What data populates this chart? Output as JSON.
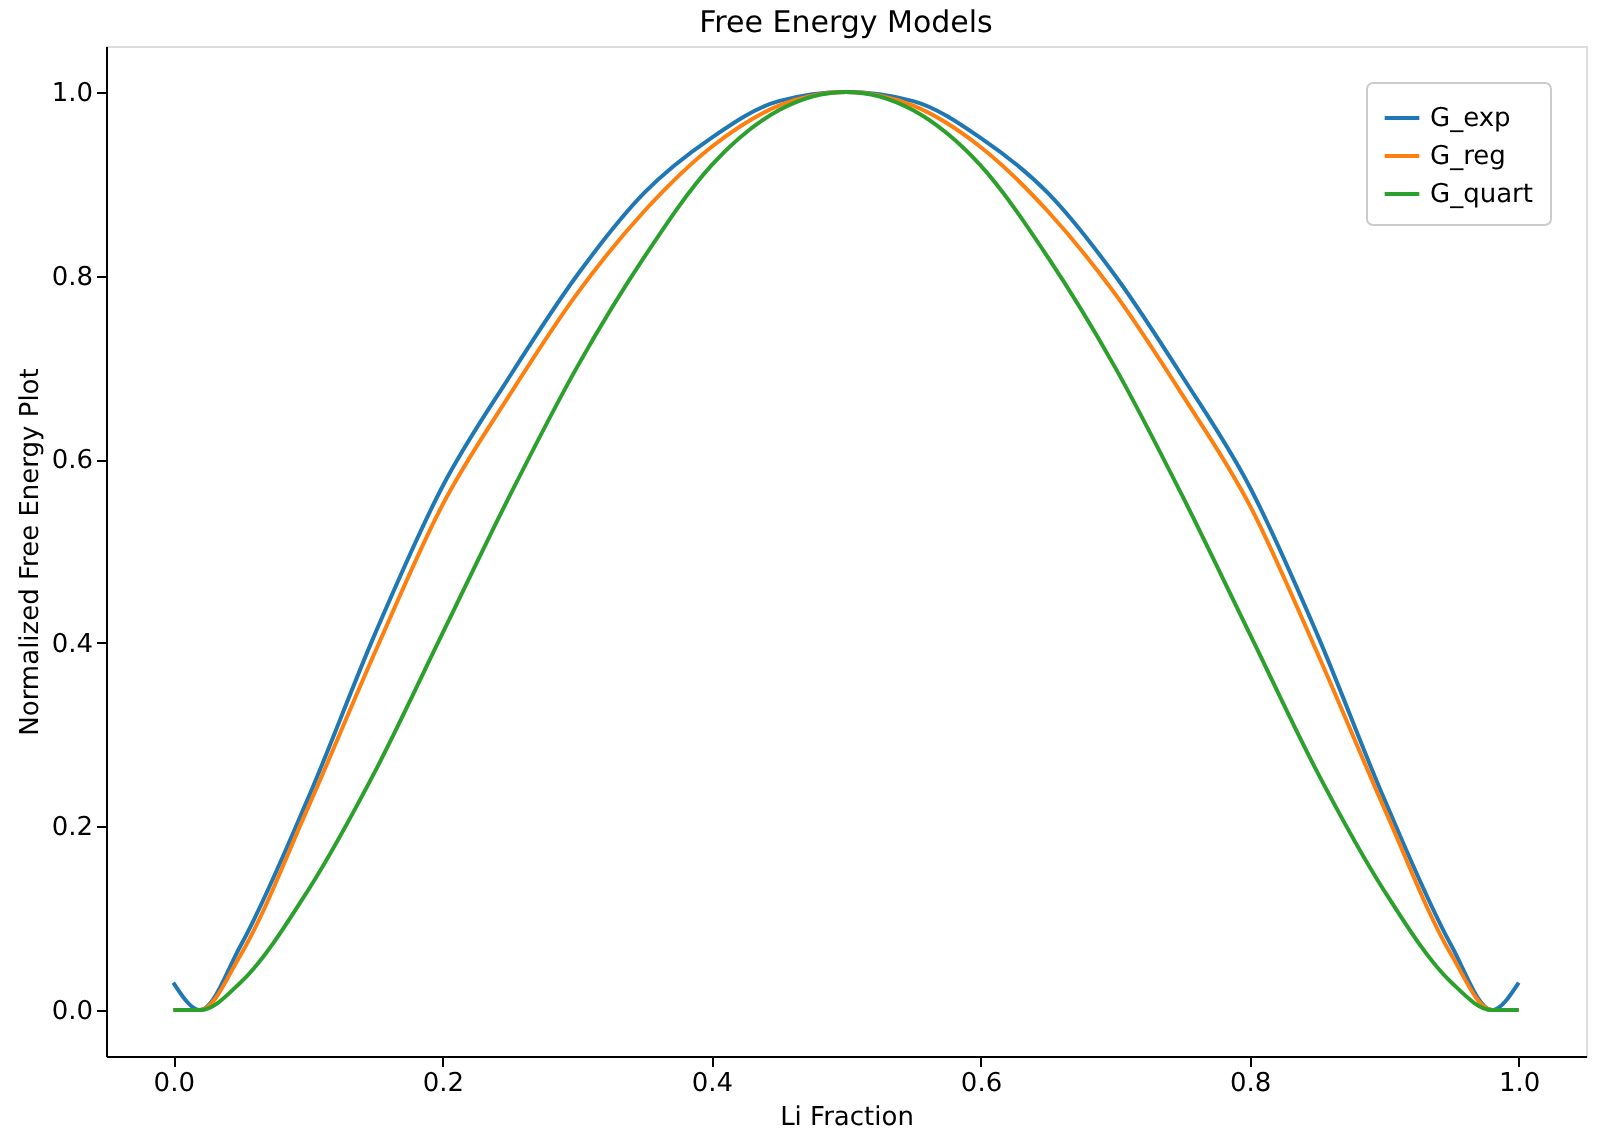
{
  "chart_data": {
    "type": "line",
    "title": "Free Energy Models",
    "xlabel": "Li Fraction",
    "ylabel": "Normalized Free Energy Plot",
    "x": [
      0,
      0.02,
      0.05,
      0.1,
      0.15,
      0.2,
      0.25,
      0.3,
      0.35,
      0.4,
      0.45,
      0.5,
      0.55,
      0.6,
      0.65,
      0.7,
      0.75,
      0.8,
      0.85,
      0.9,
      0.95,
      0.98,
      1
    ],
    "series": [
      {
        "name": "G_exp",
        "color": "#1f77b4",
        "values": [
          0.03,
          0.0,
          0.07,
          0.23,
          0.41,
          0.57,
          0.69,
          0.8,
          0.89,
          0.95,
          0.99,
          1.0,
          0.99,
          0.95,
          0.89,
          0.8,
          0.69,
          0.57,
          0.41,
          0.23,
          0.07,
          0.0,
          0.03
        ]
      },
      {
        "name": "G_reg",
        "color": "#ff7f0e",
        "values": [
          0.0,
          0.0,
          0.06,
          0.22,
          0.39,
          0.55,
          0.67,
          0.78,
          0.87,
          0.94,
          0.985,
          1.0,
          0.985,
          0.94,
          0.87,
          0.78,
          0.67,
          0.55,
          0.39,
          0.22,
          0.06,
          0.0,
          0.0
        ]
      },
      {
        "name": "G_quart",
        "color": "#2ca02c",
        "values": [
          0.0,
          0.0,
          0.03,
          0.13,
          0.26,
          0.41,
          0.56,
          0.7,
          0.82,
          0.92,
          0.98,
          1.0,
          0.98,
          0.92,
          0.82,
          0.7,
          0.56,
          0.41,
          0.26,
          0.13,
          0.03,
          0.0,
          0.0
        ]
      }
    ],
    "xlim": [
      -0.05,
      1.05
    ],
    "ylim": [
      -0.05,
      1.05
    ],
    "xticks": [
      {
        "value": 0,
        "label": "0.0"
      },
      {
        "value": 0.2,
        "label": "0.2"
      },
      {
        "value": 0.4,
        "label": "0.4"
      },
      {
        "value": 0.6,
        "label": "0.6"
      },
      {
        "value": 0.8,
        "label": "0.8"
      },
      {
        "value": 1,
        "label": "1.0"
      }
    ],
    "yticks": [
      {
        "value": 0,
        "label": "0.0"
      },
      {
        "value": 0.2,
        "label": "0.2"
      },
      {
        "value": 0.4,
        "label": "0.4"
      },
      {
        "value": 0.6,
        "label": "0.6"
      },
      {
        "value": 0.8,
        "label": "0.8"
      },
      {
        "value": 1,
        "label": "1.0"
      }
    ],
    "grid": false,
    "legend": "top right",
    "marker": "none",
    "line_style": "solid"
  }
}
